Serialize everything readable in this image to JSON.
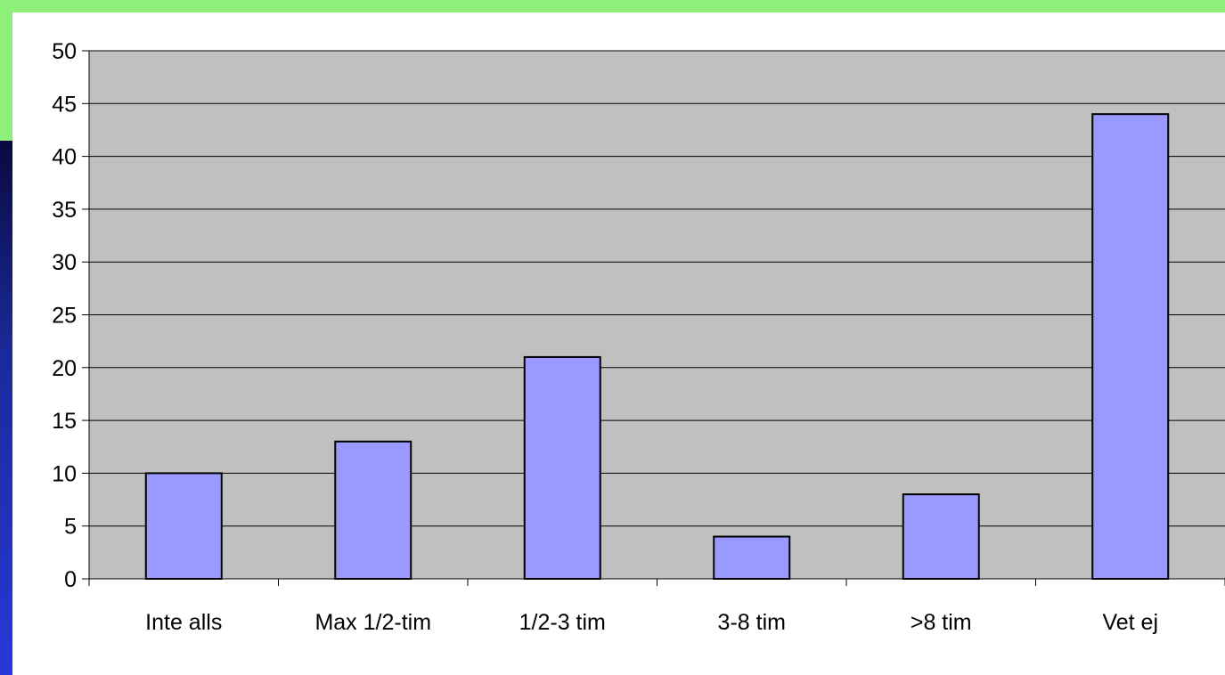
{
  "chart_data": {
    "type": "bar",
    "categories": [
      "Inte alls",
      "Max 1/2-tim",
      "1/2-3 tim",
      "3-8 tim",
      ">8 tim",
      "Vet ej"
    ],
    "values": [
      10,
      13,
      21,
      4,
      8,
      44
    ],
    "title": "",
    "xlabel": "",
    "ylabel": "",
    "ylim": [
      0,
      50
    ],
    "yticks": [
      0,
      5,
      10,
      15,
      20,
      25,
      30,
      35,
      40,
      45,
      50
    ],
    "grid": true,
    "legend": "none",
    "colors": {
      "bar_fill": "#9999ff",
      "bar_stroke": "#000000",
      "plot_background": "#c0c0c0",
      "slide_background": "#8cf07a"
    }
  }
}
